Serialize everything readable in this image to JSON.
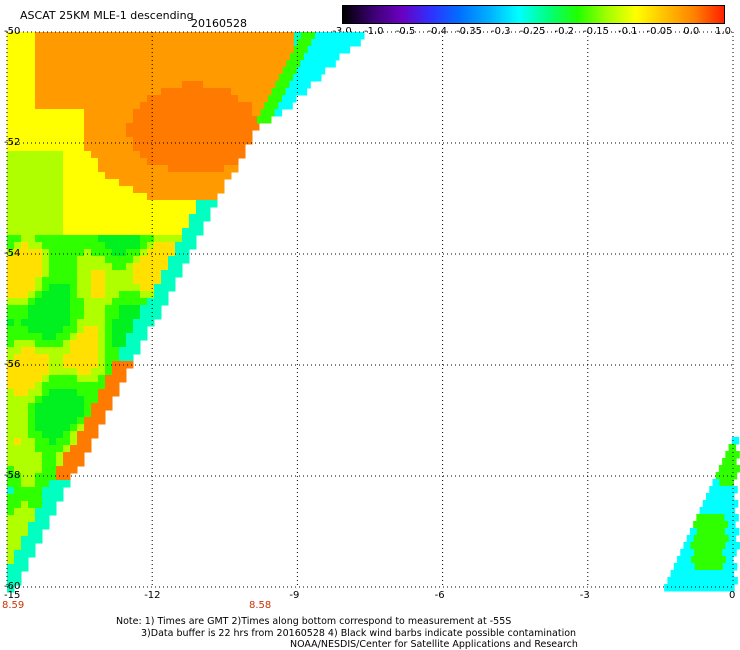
{
  "header": {
    "title": "ASCAT 25KM MLE-1 descending",
    "date": "20160528"
  },
  "colorbar": {
    "labels": [
      "-3.0",
      "-1.0",
      "-0.5",
      "-0.4",
      "-0.35",
      "-0.3",
      "-0.25",
      "-0.2",
      "-0.15",
      "-0.1",
      "-0.05",
      "0.0",
      "1.0"
    ],
    "colors": [
      "#000000",
      "#3a0070",
      "#6a00c0",
      "#3030ff",
      "#0070ff",
      "#00b0ff",
      "#00ffff",
      "#00ff80",
      "#20ff00",
      "#a0ff00",
      "#ffff00",
      "#ffc000",
      "#ff8000",
      "#ff2000"
    ]
  },
  "map": {
    "lon_min": -15,
    "lon_max": 0,
    "lat_min": -60,
    "lat_max": -50,
    "x_ticks": [
      "-15",
      "-12",
      "-9",
      "-6",
      "-3",
      "0"
    ],
    "y_ticks": [
      "-50",
      "-52",
      "-54",
      "-56",
      "-58",
      "-60"
    ],
    "swath_colors": {
      "orange": "#ff9a00",
      "darkorange": "#ff7a00",
      "yellow": "#ffff00",
      "lightyellow": "#ffe000",
      "yellowgreen": "#b0ff00",
      "green": "#30ff00",
      "green2": "#00f020",
      "cyan": "#00ffc0",
      "aqua": "#00ffff"
    }
  },
  "time_labels": {
    "left": "8.59",
    "middle": "8.58"
  },
  "notes": {
    "line1": "Note: 1) Times are GMT 2)Times along bottom correspond to measurement at -55S",
    "line2": "3)Data buffer is 22 hrs from 20160528 4) Black wind barbs indicate possible contamination",
    "line3": "NOAA/NESDIS/Center for Satellite Applications and Research"
  }
}
